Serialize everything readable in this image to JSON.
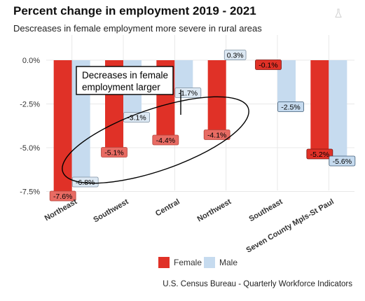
{
  "title": "Percent change in employment 2019 - 2021",
  "subtitle": "Descreases in female employment more severe in rural areas",
  "source": "U.S. Census Bureau - Quarterly Workforce Indicators",
  "colors": {
    "female": "#e03127",
    "male": "#c6dbef",
    "female_faded": "#e86b63",
    "male_faded": "#dce8f3",
    "grid": "#e8e8e8"
  },
  "legend": [
    {
      "name": "Female",
      "color": "#e03127"
    },
    {
      "name": "Male",
      "color": "#c6dbef"
    }
  ],
  "annotation": {
    "text_line1": "Decreases in female",
    "text_line2": "employment larger"
  },
  "icons": {
    "corner": "flask-icon"
  },
  "chart_data": {
    "type": "bar",
    "title": "Percent change in employment 2019 - 2021",
    "subtitle": "Descreases in female employment more severe in rural areas",
    "categories": [
      "Northeast",
      "Southwest",
      "Central",
      "Northwest",
      "Southeast",
      "Seven County Mpls-St Paul"
    ],
    "series": [
      {
        "name": "Female",
        "values": [
          -7.6,
          -5.1,
          -4.4,
          -4.1,
          -0.1,
          -5.2
        ]
      },
      {
        "name": "Male",
        "values": [
          -6.8,
          -3.1,
          -1.7,
          0.3,
          -2.5,
          -5.6
        ]
      }
    ],
    "value_labels": {
      "Female": [
        "-7.6%",
        "-5.1%",
        "-4.4%",
        "-4.1%",
        "-0.1%",
        "-5.2%"
      ],
      "Male": [
        "-6.8%",
        "-3.1%",
        "-1.7%",
        "0.3%",
        "-2.5%",
        "-5.6%"
      ]
    },
    "y_ticks": [
      0,
      -2.5,
      -5,
      -7.5
    ],
    "y_tick_labels": [
      "0.0%",
      "-2.5%",
      "-5.0%",
      "-7.5%"
    ],
    "ylim": [
      -8.2,
      0.6
    ],
    "xlabel": "",
    "ylabel": "",
    "grid": true,
    "legend_position": "bottom",
    "highlighted_categories": [
      "Northeast",
      "Southwest",
      "Central",
      "Northwest"
    ]
  }
}
